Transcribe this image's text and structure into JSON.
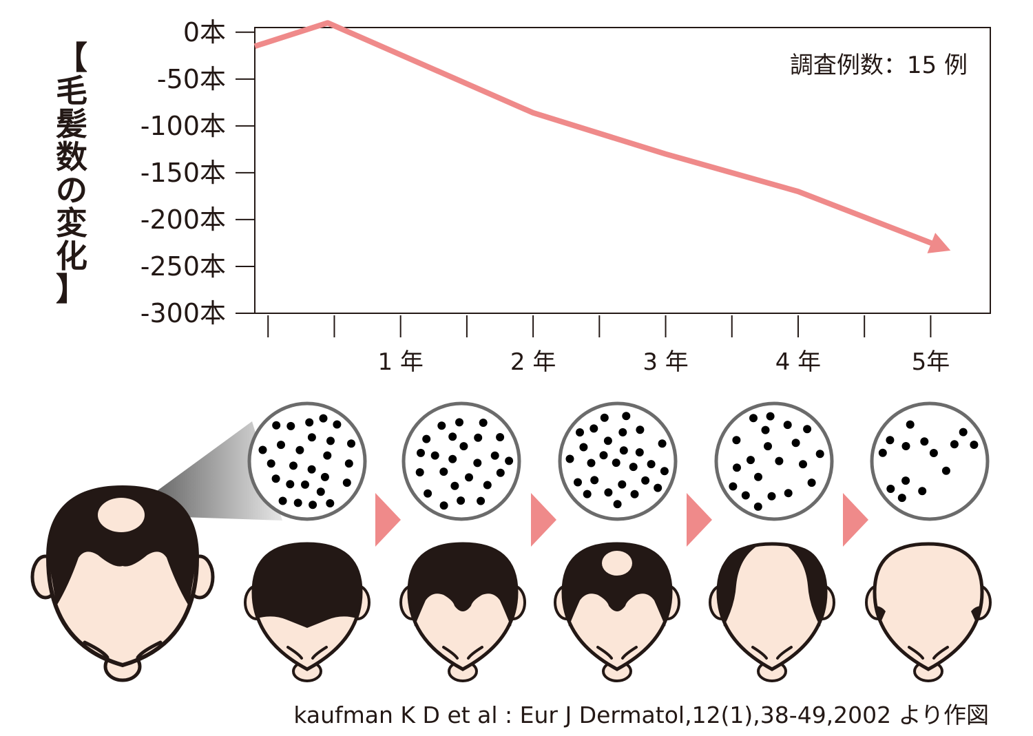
{
  "chart_data": {
    "type": "line",
    "y_title": "【毛髪数の変化】",
    "y_title_chars": [
      "【",
      "毛",
      "髪",
      "数",
      "の",
      "変",
      "化",
      "】"
    ],
    "annotation": "調査例数：15 例",
    "ylim": [
      -300,
      5
    ],
    "yticks": [
      0,
      -50,
      -100,
      -150,
      -200,
      -250,
      -300
    ],
    "ytick_labels": [
      "0本",
      "-50本",
      "-100本",
      "-150本",
      "-200本",
      "-250本",
      "-300本"
    ],
    "xlim": [
      -0.1,
      5.45
    ],
    "xticks": [
      0,
      0.5,
      1,
      1.5,
      2,
      2.5,
      3,
      3.5,
      4,
      4.5,
      5
    ],
    "xtick_labels": [
      {
        "x": 1,
        "label": "1 年"
      },
      {
        "x": 2,
        "label": "2 年"
      },
      {
        "x": 3,
        "label": "3 年"
      },
      {
        "x": 4,
        "label": "4 年"
      },
      {
        "x": 5,
        "label": "5年"
      }
    ],
    "series": [
      {
        "color": "#ef8a8a",
        "x": [
          -0.1,
          0.45,
          2,
          3,
          4,
          5.15
        ],
        "y": [
          -15,
          10,
          -86,
          -130,
          -170,
          -233
        ]
      }
    ],
    "grid": false
  },
  "illustration": {
    "hair_color": "#231815",
    "skin_color": "#fbe6d8",
    "arrow_color": "#ef8a8a",
    "stages": [
      {
        "hair": "full"
      },
      {
        "hair": "receding"
      },
      {
        "hair": "crown-thinning"
      },
      {
        "hair": "sides-only"
      },
      {
        "hair": "fringe-only"
      }
    ]
  },
  "citation": "kaufman K D et al : Eur J Dermatol,12(1),38-49,2002 より作図"
}
